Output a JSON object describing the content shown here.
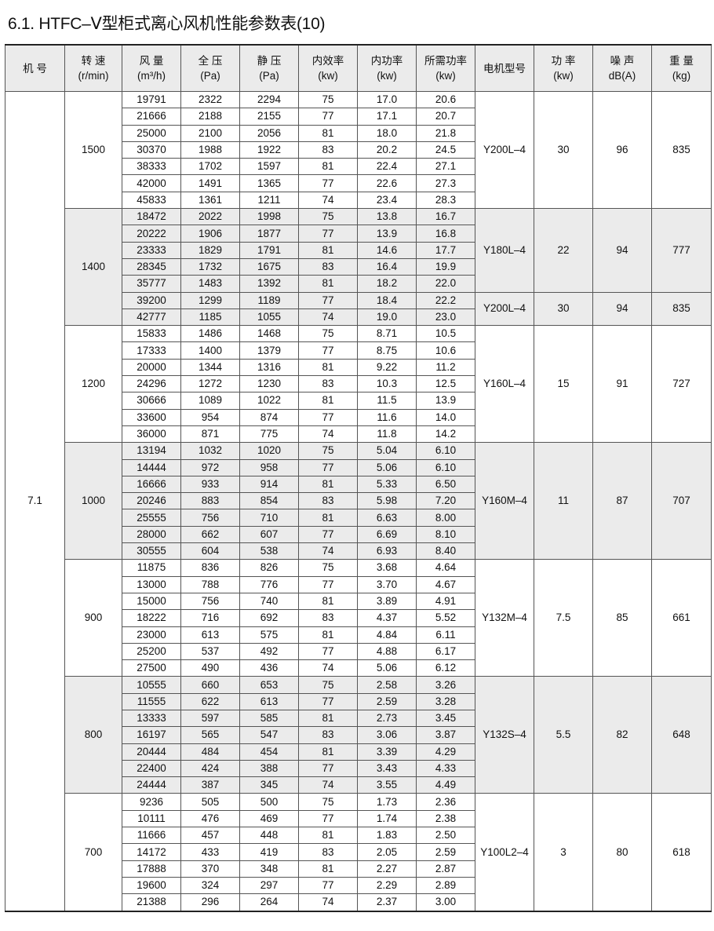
{
  "title": "6.1. HTFC–Ⅴ型柜式离心风机性能参数表(10)",
  "headers": [
    [
      "机 号",
      ""
    ],
    [
      "转 速",
      "(r/min)"
    ],
    [
      "风 量",
      "(m³/h)"
    ],
    [
      "全 压",
      "(Pa)"
    ],
    [
      "静 压",
      "(Pa)"
    ],
    [
      "内效率",
      "(kw)"
    ],
    [
      "内功率",
      "(kw)"
    ],
    [
      "所需功率",
      "(kw)"
    ],
    [
      "电机型号",
      ""
    ],
    [
      "功 率",
      "(kw)"
    ],
    [
      "噪 声",
      "dB(A)"
    ],
    [
      "重 量",
      "(kg)"
    ]
  ],
  "model_no": "7.1",
  "groups": [
    {
      "speed": "1500",
      "shaded": false,
      "rows": [
        [
          "19791",
          "2322",
          "2294",
          "75",
          "17.0",
          "20.6"
        ],
        [
          "21666",
          "2188",
          "2155",
          "77",
          "17.1",
          "20.7"
        ],
        [
          "25000",
          "2100",
          "2056",
          "81",
          "18.0",
          "21.8"
        ],
        [
          "30370",
          "1988",
          "1922",
          "83",
          "20.2",
          "24.5"
        ],
        [
          "38333",
          "1702",
          "1597",
          "81",
          "22.4",
          "27.1"
        ],
        [
          "42000",
          "1491",
          "1365",
          "77",
          "22.6",
          "27.3"
        ],
        [
          "45833",
          "1361",
          "1211",
          "74",
          "23.4",
          "28.3"
        ]
      ],
      "motors": [
        {
          "model": "Y200L–4",
          "power": "30",
          "noise": "96",
          "weight": "835",
          "rows": 7
        }
      ]
    },
    {
      "speed": "1400",
      "shaded": true,
      "rows": [
        [
          "18472",
          "2022",
          "1998",
          "75",
          "13.8",
          "16.7"
        ],
        [
          "20222",
          "1906",
          "1877",
          "77",
          "13.9",
          "16.8"
        ],
        [
          "23333",
          "1829",
          "1791",
          "81",
          "14.6",
          "17.7"
        ],
        [
          "28345",
          "1732",
          "1675",
          "83",
          "16.4",
          "19.9"
        ],
        [
          "35777",
          "1483",
          "1392",
          "81",
          "18.2",
          "22.0"
        ],
        [
          "39200",
          "1299",
          "1189",
          "77",
          "18.4",
          "22.2"
        ],
        [
          "42777",
          "1185",
          "1055",
          "74",
          "19.0",
          "23.0"
        ]
      ],
      "motors": [
        {
          "model": "Y180L–4",
          "power": "22",
          "noise": "94",
          "weight": "777",
          "rows": 5
        },
        {
          "model": "Y200L–4",
          "power": "30",
          "noise": "94",
          "weight": "835",
          "rows": 2
        }
      ]
    },
    {
      "speed": "1200",
      "shaded": false,
      "rows": [
        [
          "15833",
          "1486",
          "1468",
          "75",
          "8.71",
          "10.5"
        ],
        [
          "17333",
          "1400",
          "1379",
          "77",
          "8.75",
          "10.6"
        ],
        [
          "20000",
          "1344",
          "1316",
          "81",
          "9.22",
          "11.2"
        ],
        [
          "24296",
          "1272",
          "1230",
          "83",
          "10.3",
          "12.5"
        ],
        [
          "30666",
          "1089",
          "1022",
          "81",
          "11.5",
          "13.9"
        ],
        [
          "33600",
          "954",
          "874",
          "77",
          "11.6",
          "14.0"
        ],
        [
          "36000",
          "871",
          "775",
          "74",
          "11.8",
          "14.2"
        ]
      ],
      "motors": [
        {
          "model": "Y160L–4",
          "power": "15",
          "noise": "91",
          "weight": "727",
          "rows": 7
        }
      ]
    },
    {
      "speed": "1000",
      "shaded": true,
      "rows": [
        [
          "13194",
          "1032",
          "1020",
          "75",
          "5.04",
          "6.10"
        ],
        [
          "14444",
          "972",
          "958",
          "77",
          "5.06",
          "6.10"
        ],
        [
          "16666",
          "933",
          "914",
          "81",
          "5.33",
          "6.50"
        ],
        [
          "20246",
          "883",
          "854",
          "83",
          "5.98",
          "7.20"
        ],
        [
          "25555",
          "756",
          "710",
          "81",
          "6.63",
          "8.00"
        ],
        [
          "28000",
          "662",
          "607",
          "77",
          "6.69",
          "8.10"
        ],
        [
          "30555",
          "604",
          "538",
          "74",
          "6.93",
          "8.40"
        ]
      ],
      "motors": [
        {
          "model": "Y160M–4",
          "power": "11",
          "noise": "87",
          "weight": "707",
          "rows": 7
        }
      ]
    },
    {
      "speed": "900",
      "shaded": false,
      "rows": [
        [
          "11875",
          "836",
          "826",
          "75",
          "3.68",
          "4.64"
        ],
        [
          "13000",
          "788",
          "776",
          "77",
          "3.70",
          "4.67"
        ],
        [
          "15000",
          "756",
          "740",
          "81",
          "3.89",
          "4.91"
        ],
        [
          "18222",
          "716",
          "692",
          "83",
          "4.37",
          "5.52"
        ],
        [
          "23000",
          "613",
          "575",
          "81",
          "4.84",
          "6.11"
        ],
        [
          "25200",
          "537",
          "492",
          "77",
          "4.88",
          "6.17"
        ],
        [
          "27500",
          "490",
          "436",
          "74",
          "5.06",
          "6.12"
        ]
      ],
      "motors": [
        {
          "model": "Y132M–4",
          "power": "7.5",
          "noise": "85",
          "weight": "661",
          "rows": 7
        }
      ]
    },
    {
      "speed": "800",
      "shaded": true,
      "rows": [
        [
          "10555",
          "660",
          "653",
          "75",
          "2.58",
          "3.26"
        ],
        [
          "11555",
          "622",
          "613",
          "77",
          "2.59",
          "3.28"
        ],
        [
          "13333",
          "597",
          "585",
          "81",
          "2.73",
          "3.45"
        ],
        [
          "16197",
          "565",
          "547",
          "83",
          "3.06",
          "3.87"
        ],
        [
          "20444",
          "484",
          "454",
          "81",
          "3.39",
          "4.29"
        ],
        [
          "22400",
          "424",
          "388",
          "77",
          "3.43",
          "4.33"
        ],
        [
          "24444",
          "387",
          "345",
          "74",
          "3.55",
          "4.49"
        ]
      ],
      "motors": [
        {
          "model": "Y132S–4",
          "power": "5.5",
          "noise": "82",
          "weight": "648",
          "rows": 7
        }
      ]
    },
    {
      "speed": "700",
      "shaded": false,
      "rows": [
        [
          "9236",
          "505",
          "500",
          "75",
          "1.73",
          "2.36"
        ],
        [
          "10111",
          "476",
          "469",
          "77",
          "1.74",
          "2.38"
        ],
        [
          "11666",
          "457",
          "448",
          "81",
          "1.83",
          "2.50"
        ],
        [
          "14172",
          "433",
          "419",
          "83",
          "2.05",
          "2.59"
        ],
        [
          "17888",
          "370",
          "348",
          "81",
          "2.27",
          "2.87"
        ],
        [
          "19600",
          "324",
          "297",
          "77",
          "2.29",
          "2.89"
        ],
        [
          "21388",
          "296",
          "264",
          "74",
          "2.37",
          "3.00"
        ]
      ],
      "motors": [
        {
          "model": "Y100L2–4",
          "power": "3",
          "noise": "80",
          "weight": "618",
          "rows": 7
        }
      ]
    }
  ]
}
